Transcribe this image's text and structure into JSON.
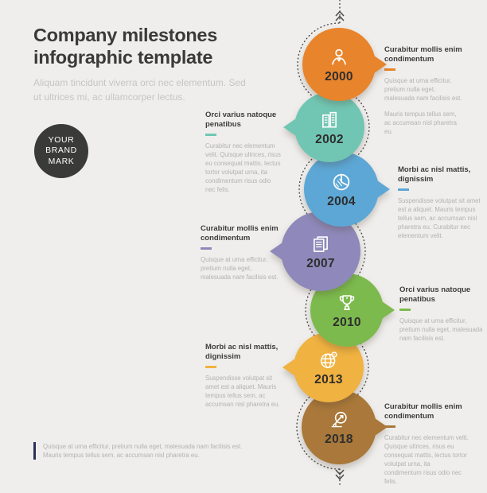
{
  "page": {
    "background_color": "#EFEEEC"
  },
  "header": {
    "title_line1": "Company milestones",
    "title_line2": "infographic template",
    "subtitle_line1": "Aliquam tincidunt viverra orci nec elementum. Sed",
    "subtitle_line2": "ut ultrices mi, ac ullamcorper lectus."
  },
  "brand": {
    "line1": "YOUR",
    "line2": "BRAND",
    "line3": "MARK",
    "color": "#3A3A39"
  },
  "timeline": {
    "line_color": "#4a4a4a",
    "items": [
      {
        "year": "2000",
        "color": "#E8842B",
        "icon": "person-icon",
        "side": "right",
        "heading": "Curabitur mollis enim condimentum",
        "paragraphs": [
          "Quisque at urna efficitur, pretium nulla eget, malesuada nam facilisis est.",
          "Mauris tempus tellus sem, ac accumsan nisl pharetra eu."
        ]
      },
      {
        "year": "2002",
        "color": "#71C6B3",
        "icon": "building-icon",
        "side": "left",
        "heading": "Orci varius natoque penatibus",
        "paragraphs": [
          "Curabitur nec elementum velit. Quisque ultrices, risus eu consequat mattis, lectus tortor volutpat urna, ita condimentum risus odio nec felis."
        ]
      },
      {
        "year": "2004",
        "color": "#5CA7D5",
        "icon": "pie-chart-icon",
        "side": "right",
        "heading": "Morbi ac nisl mattis, dignissim",
        "paragraphs": [
          "Suspendisse volutpat sit amet est a aliquet. Mauris tempus tellus sem, ac accumsan nisl pharetra eu. Curabitur nec elementum velit."
        ]
      },
      {
        "year": "2007",
        "color": "#8E89BA",
        "icon": "documents-icon",
        "side": "left",
        "heading": "Curabitur mollis enim condimentum",
        "paragraphs": [
          "Quisque at urna efficitur, pretium nulla eget, malesuada nam facilisis est."
        ]
      },
      {
        "year": "2010",
        "color": "#7CBA4D",
        "icon": "trophy-icon",
        "side": "right",
        "heading": "Orci varius natoque penatibus",
        "paragraphs": [
          "Quisque at urna efficitur, pretium nulla eget, malesuada nam facilisis est."
        ]
      },
      {
        "year": "2013",
        "color": "#F0B240",
        "icon": "globe-pin-icon",
        "side": "left",
        "heading": "Morbi ac nisl mattis, dignissim",
        "paragraphs": [
          "Suspendisse volutpat sit amet est a aliquet. Mauris tempus tellus sem, ac accumsan nisl pharetra eu."
        ]
      },
      {
        "year": "2018",
        "color": "#A9783A",
        "icon": "chart-search-icon",
        "side": "right",
        "heading": "Curabitur mollis enim condimentum",
        "paragraphs": [
          "Curabitur nec elementum velit. Quisque ultrices, risus eu consequat mattis, lectus tortor volutpat urna, ita condimentum risus odio nec felis."
        ]
      }
    ]
  },
  "footer": {
    "bar_color": "#2B3157",
    "line1": "Quisque at urna efficitur, pretium nulla eget, malesuada nam facilisis est.",
    "line2": "Mauris tempus tellus sem, ac accumsan nisl pharetra eu."
  }
}
